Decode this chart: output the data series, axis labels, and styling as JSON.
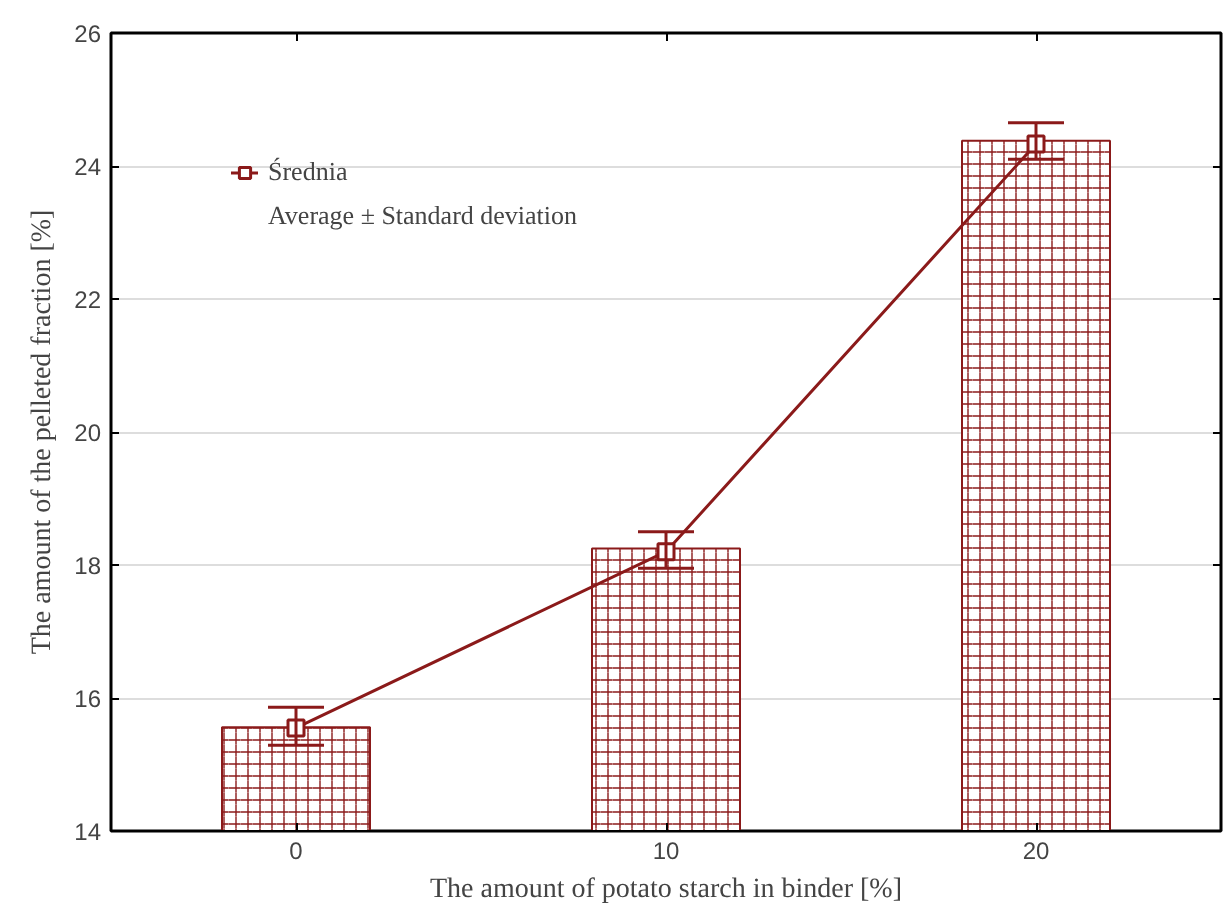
{
  "chart_data": {
    "type": "bar",
    "xlabel": "The amount of potato starch in binder [%]",
    "ylabel": "The amount of the pelleted fraction [%]",
    "x": [
      0,
      10,
      20
    ],
    "xlim": [
      -5,
      25
    ],
    "xticks": [
      0,
      10,
      20
    ],
    "ylim": [
      14,
      26
    ],
    "yticks": [
      14,
      16,
      18,
      20,
      22,
      24,
      26
    ],
    "grid": "y",
    "legend": "top left",
    "series": [
      {
        "color": "#8b1a1a",
        "values": [
          15.56,
          18.25,
          24.38
        ]
      },
      {
        "type": "line",
        "name": "Średnia",
        "color": "#8b1a1a",
        "marker": "square",
        "values": [
          15.55,
          18.2,
          24.33
        ],
        "errors": [
          [
            15.29,
            15.86
          ],
          [
            17.95,
            18.5
          ],
          [
            24.1,
            24.65
          ]
        ]
      }
    ],
    "annotations": [
      "Average ± Standard deviation"
    ]
  }
}
